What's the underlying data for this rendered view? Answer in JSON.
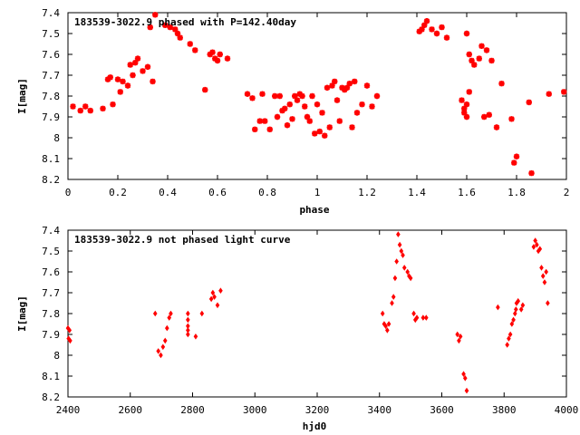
{
  "chart_data": [
    {
      "type": "scatter",
      "title": "183539-3022.9 phased with P=142.40day",
      "xlabel": "phase",
      "ylabel": "I[mag]",
      "xlim": [
        0,
        2
      ],
      "ylim": [
        7.4,
        8.2
      ],
      "y_inverted": true,
      "grid": false,
      "marker": "star",
      "color": "#ff0000",
      "x_ticks": [
        "0",
        "0.2",
        "0.4",
        "0.6",
        "0.8",
        "1",
        "1.2",
        "1.4",
        "1.6",
        "1.8",
        "2"
      ],
      "y_ticks": [
        "7.4",
        "7.5",
        "7.6",
        "7.7",
        "7.8",
        "7.9",
        "8",
        "8.1",
        "8.2"
      ],
      "points": [
        [
          0.02,
          7.85
        ],
        [
          0.05,
          7.87
        ],
        [
          0.07,
          7.85
        ],
        [
          0.09,
          7.87
        ],
        [
          0.14,
          7.86
        ],
        [
          0.16,
          7.72
        ],
        [
          0.17,
          7.71
        ],
        [
          0.18,
          7.84
        ],
        [
          0.2,
          7.72
        ],
        [
          0.21,
          7.78
        ],
        [
          0.22,
          7.73
        ],
        [
          0.24,
          7.75
        ],
        [
          0.25,
          7.65
        ],
        [
          0.26,
          7.7
        ],
        [
          0.27,
          7.64
        ],
        [
          0.28,
          7.62
        ],
        [
          0.3,
          7.68
        ],
        [
          0.32,
          7.66
        ],
        [
          0.33,
          7.47
        ],
        [
          0.34,
          7.73
        ],
        [
          0.35,
          7.41
        ],
        [
          0.39,
          7.46
        ],
        [
          0.41,
          7.47
        ],
        [
          0.43,
          7.48
        ],
        [
          0.44,
          7.5
        ],
        [
          0.45,
          7.52
        ],
        [
          0.49,
          7.55
        ],
        [
          0.51,
          7.58
        ],
        [
          0.55,
          7.77
        ],
        [
          0.57,
          7.6
        ],
        [
          0.58,
          7.59
        ],
        [
          0.59,
          7.62
        ],
        [
          0.6,
          7.63
        ],
        [
          0.61,
          7.6
        ],
        [
          0.64,
          7.62
        ],
        [
          0.72,
          7.79
        ],
        [
          0.74,
          7.81
        ],
        [
          0.75,
          7.96
        ],
        [
          0.77,
          7.92
        ],
        [
          0.78,
          7.79
        ],
        [
          0.79,
          7.92
        ],
        [
          0.81,
          7.96
        ],
        [
          0.83,
          7.8
        ],
        [
          0.84,
          7.9
        ],
        [
          0.85,
          7.8
        ],
        [
          0.86,
          7.87
        ],
        [
          0.87,
          7.86
        ],
        [
          0.88,
          7.94
        ],
        [
          0.89,
          7.84
        ],
        [
          0.9,
          7.91
        ],
        [
          0.91,
          7.8
        ],
        [
          0.92,
          7.82
        ],
        [
          0.93,
          7.79
        ],
        [
          0.94,
          7.8
        ],
        [
          0.95,
          7.85
        ],
        [
          0.96,
          7.9
        ],
        [
          0.97,
          7.92
        ],
        [
          0.98,
          7.8
        ],
        [
          0.99,
          7.98
        ],
        [
          1.0,
          7.84
        ],
        [
          1.01,
          7.97
        ],
        [
          1.02,
          7.88
        ],
        [
          1.03,
          7.99
        ],
        [
          1.04,
          7.76
        ],
        [
          1.05,
          7.95
        ],
        [
          1.06,
          7.75
        ],
        [
          1.07,
          7.73
        ],
        [
          1.08,
          7.82
        ],
        [
          1.09,
          7.92
        ],
        [
          1.1,
          7.76
        ],
        [
          1.11,
          7.77
        ],
        [
          1.12,
          7.76
        ],
        [
          1.13,
          7.74
        ],
        [
          1.14,
          7.95
        ],
        [
          1.15,
          7.73
        ],
        [
          1.16,
          7.88
        ],
        [
          1.18,
          7.84
        ],
        [
          1.2,
          7.75
        ],
        [
          1.22,
          7.85
        ],
        [
          1.24,
          7.8
        ],
        [
          1.41,
          7.49
        ],
        [
          1.42,
          7.48
        ],
        [
          1.43,
          7.46
        ],
        [
          1.44,
          7.44
        ],
        [
          1.46,
          7.48
        ],
        [
          1.48,
          7.5
        ],
        [
          1.5,
          7.47
        ],
        [
          1.52,
          7.52
        ],
        [
          1.58,
          7.82
        ],
        [
          1.59,
          7.86
        ],
        [
          1.6,
          7.9
        ],
        [
          1.59,
          7.88
        ],
        [
          1.6,
          7.84
        ],
        [
          1.61,
          7.78
        ],
        [
          1.6,
          7.5
        ],
        [
          1.61,
          7.6
        ],
        [
          1.62,
          7.63
        ],
        [
          1.63,
          7.65
        ],
        [
          1.65,
          7.62
        ],
        [
          1.66,
          7.56
        ],
        [
          1.67,
          7.9
        ],
        [
          1.68,
          7.58
        ],
        [
          1.69,
          7.89
        ],
        [
          1.7,
          7.63
        ],
        [
          1.72,
          7.95
        ],
        [
          1.74,
          7.74
        ],
        [
          1.78,
          7.91
        ],
        [
          1.79,
          8.12
        ],
        [
          1.8,
          8.09
        ],
        [
          1.85,
          7.83
        ],
        [
          1.86,
          8.17
        ],
        [
          1.93,
          7.79
        ],
        [
          1.99,
          7.78
        ]
      ]
    },
    {
      "type": "scatter",
      "title": "183539-3022.9 not phased light curve",
      "xlabel": "hjd0",
      "ylabel": "I[mag]",
      "xlim": [
        2400,
        4000
      ],
      "ylim": [
        7.4,
        8.2
      ],
      "y_inverted": true,
      "grid": false,
      "marker": "diamond",
      "color": "#ff0000",
      "x_ticks": [
        "2400",
        "2600",
        "2800",
        "3000",
        "3200",
        "3400",
        "3600",
        "3800",
        "4000"
      ],
      "y_ticks": [
        "7.4",
        "7.5",
        "7.6",
        "7.7",
        "7.8",
        "7.9",
        "8",
        "8.1",
        "8.2"
      ],
      "points": [
        [
          2400,
          7.87
        ],
        [
          2402,
          7.92
        ],
        [
          2405,
          7.88
        ],
        [
          2407,
          7.93
        ],
        [
          2680,
          7.8
        ],
        [
          2690,
          7.98
        ],
        [
          2698,
          8.0
        ],
        [
          2705,
          7.96
        ],
        [
          2712,
          7.93
        ],
        [
          2718,
          7.87
        ],
        [
          2725,
          7.82
        ],
        [
          2730,
          7.8
        ],
        [
          2785,
          7.8
        ],
        [
          2785,
          7.83
        ],
        [
          2785,
          7.86
        ],
        [
          2785,
          7.88
        ],
        [
          2785,
          7.9
        ],
        [
          2810,
          7.91
        ],
        [
          2830,
          7.8
        ],
        [
          2860,
          7.73
        ],
        [
          2865,
          7.7
        ],
        [
          2870,
          7.72
        ],
        [
          2880,
          7.76
        ],
        [
          2890,
          7.69
        ],
        [
          3410,
          7.8
        ],
        [
          3415,
          7.85
        ],
        [
          3420,
          7.86
        ],
        [
          3425,
          7.88
        ],
        [
          3430,
          7.85
        ],
        [
          3440,
          7.75
        ],
        [
          3445,
          7.72
        ],
        [
          3450,
          7.63
        ],
        [
          3455,
          7.55
        ],
        [
          3460,
          7.42
        ],
        [
          3465,
          7.47
        ],
        [
          3470,
          7.5
        ],
        [
          3475,
          7.52
        ],
        [
          3480,
          7.58
        ],
        [
          3490,
          7.6
        ],
        [
          3495,
          7.62
        ],
        [
          3500,
          7.63
        ],
        [
          3510,
          7.8
        ],
        [
          3515,
          7.83
        ],
        [
          3520,
          7.82
        ],
        [
          3540,
          7.82
        ],
        [
          3550,
          7.82
        ],
        [
          3650,
          7.9
        ],
        [
          3655,
          7.93
        ],
        [
          3660,
          7.91
        ],
        [
          3670,
          8.09
        ],
        [
          3675,
          8.11
        ],
        [
          3680,
          8.17
        ],
        [
          3780,
          7.77
        ],
        [
          3810,
          7.95
        ],
        [
          3815,
          7.92
        ],
        [
          3820,
          7.9
        ],
        [
          3825,
          7.85
        ],
        [
          3830,
          7.83
        ],
        [
          3835,
          7.8
        ],
        [
          3838,
          7.78
        ],
        [
          3840,
          7.75
        ],
        [
          3845,
          7.74
        ],
        [
          3855,
          7.78
        ],
        [
          3860,
          7.76
        ],
        [
          3895,
          7.48
        ],
        [
          3900,
          7.45
        ],
        [
          3905,
          7.47
        ],
        [
          3910,
          7.5
        ],
        [
          3915,
          7.49
        ],
        [
          3920,
          7.58
        ],
        [
          3925,
          7.62
        ],
        [
          3930,
          7.65
        ],
        [
          3935,
          7.6
        ],
        [
          3940,
          7.75
        ]
      ]
    }
  ]
}
